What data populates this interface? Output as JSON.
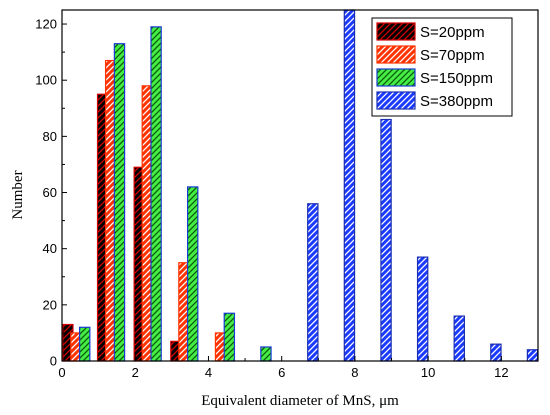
{
  "chart_data": {
    "type": "bar",
    "xlabel": "Equivalent diameter of MnS, μm",
    "ylabel": "Number",
    "xlim": [
      0,
      13
    ],
    "ylim": [
      0,
      125
    ],
    "x_ticks": [
      0,
      2,
      4,
      6,
      8,
      10,
      12
    ],
    "y_ticks": [
      0,
      20,
      40,
      60,
      80,
      100,
      120
    ],
    "bar_width": 0.28,
    "legend_position": "top-right",
    "series": [
      {
        "name": "S=20ppm",
        "color": "#d40000",
        "fill": "#000000",
        "hatch": "#d40000",
        "x": [
          0.16,
          1.11,
          2.11,
          3.11
        ],
        "values": [
          13,
          95,
          69,
          7
        ]
      },
      {
        "name": "S=70ppm",
        "color": "#ff3300",
        "fill": "#ff3300",
        "hatch": "#ffffff",
        "x": [
          0.38,
          1.33,
          2.33,
          3.33,
          4.33
        ],
        "values": [
          10,
          107,
          98,
          35,
          10
        ]
      },
      {
        "name": "S=150ppm",
        "color": "#1a3bd6",
        "fill": "#44ee44",
        "hatch": "#0a5a0a",
        "x": [
          0.62,
          1.57,
          2.57,
          3.57,
          4.57,
          5.57
        ],
        "values": [
          12,
          113,
          119,
          62,
          17,
          5
        ]
      },
      {
        "name": "S=380ppm",
        "color": "#1a2fb0",
        "fill": "#1a3bff",
        "hatch": "#ffffff",
        "x": [
          6.85,
          7.85,
          8.85,
          9.85,
          10.85,
          11.85,
          12.85
        ],
        "values": [
          56,
          125,
          86,
          37,
          16,
          6,
          4
        ]
      }
    ]
  }
}
